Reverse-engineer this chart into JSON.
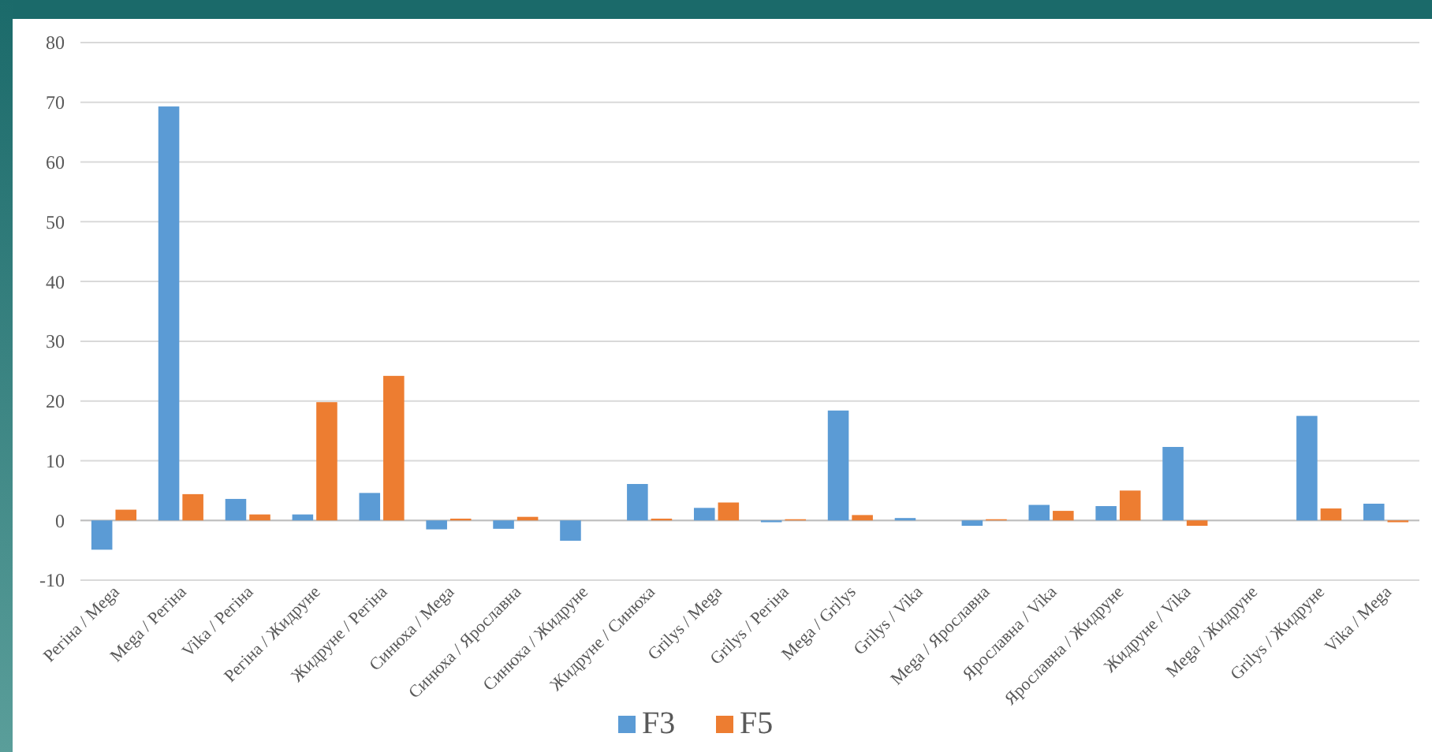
{
  "chart_data": {
    "type": "bar",
    "categories": [
      "Регіна / Mega",
      "Mega / Регіна",
      "Vika / Регіна",
      "Регіна / Жидруне",
      "Жидруне / Регіна",
      "Синюха / Mega",
      "Синюха / Ярославна",
      "Синюха / Жидруне",
      "Жидруне / Синюха",
      "Grilys / Mega",
      "Grilys / Регіна",
      "Mega / Grilys",
      "Grilys / Vika",
      "Mega / Ярославна",
      "Ярославна / Vika",
      "Ярославна / Жидруне",
      "Жидруне / Vika",
      "Mega / Жидруне",
      "Grilys / Жидруне",
      "Vika / Mega"
    ],
    "series": [
      {
        "name": "F3",
        "color": "#5b9bd5",
        "values": [
          -4.9,
          69.3,
          3.6,
          1.0,
          4.6,
          -1.5,
          -1.4,
          -3.4,
          6.1,
          2.1,
          -0.3,
          18.4,
          0.4,
          -0.9,
          2.6,
          2.4,
          12.3,
          null,
          17.5,
          2.8
        ]
      },
      {
        "name": "F5",
        "color": "#ed7d31",
        "values": [
          1.8,
          4.4,
          1.0,
          19.8,
          24.2,
          0.3,
          0.6,
          null,
          0.3,
          3.0,
          0.2,
          0.9,
          null,
          0.2,
          1.6,
          5.0,
          -0.9,
          null,
          2.0,
          -0.3
        ]
      }
    ],
    "ylim": [
      -10,
      80
    ],
    "yticks": [
      -10,
      0,
      10,
      20,
      30,
      40,
      50,
      60,
      70,
      80
    ],
    "grid": "y",
    "legend": "bottom"
  }
}
